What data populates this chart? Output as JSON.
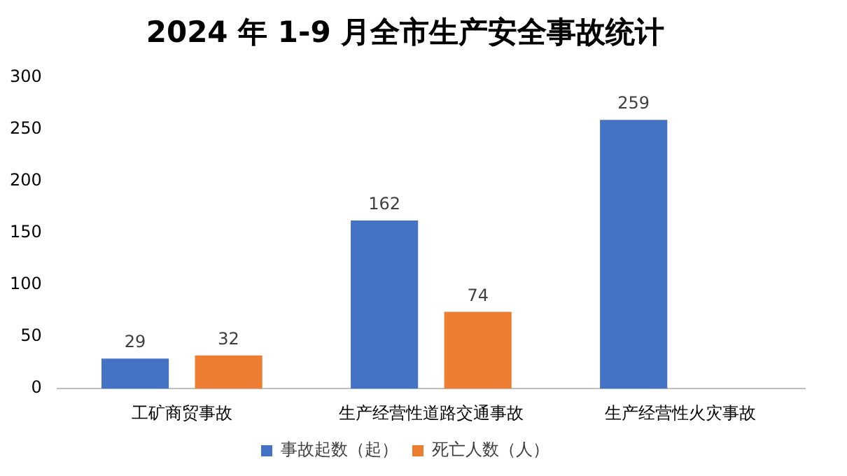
{
  "chart_data": {
    "type": "bar",
    "title": "2024 年 1-9 月全市生产安全事故统计",
    "categories": [
      "工矿商贸事故",
      "生产经营性道路交通事故",
      "生产经营性火灾事故"
    ],
    "series": [
      {
        "name": "事故起数（起）",
        "color": "#4472c4",
        "values": [
          29,
          162,
          259
        ]
      },
      {
        "name": "死亡人数（人）",
        "color": "#ed7d31",
        "values": [
          32,
          74,
          null
        ]
      }
    ],
    "ylim": [
      0,
      300
    ],
    "yticks": [
      0,
      50,
      100,
      150,
      200,
      250,
      300
    ],
    "grid": false,
    "legend": "bottom",
    "data_labels": true
  }
}
